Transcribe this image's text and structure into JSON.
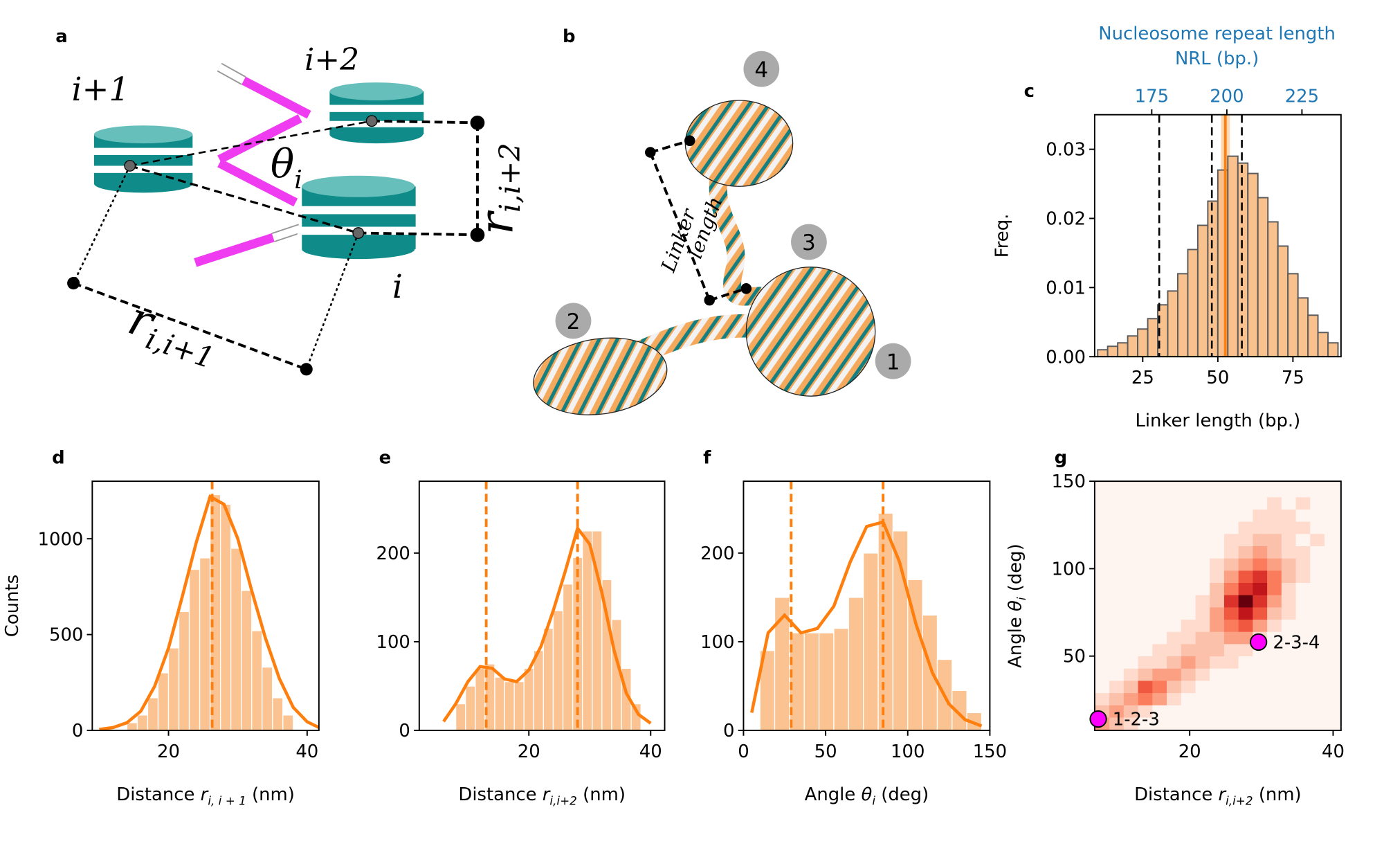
{
  "diagram_a": {
    "panel": "a",
    "nucleosomes": [
      "i+1",
      "i+2",
      "i"
    ],
    "angle": {
      "symbol": "θ",
      "sub": "i"
    },
    "r_i2": {
      "symbol": "r",
      "sub": "i,i+2"
    },
    "r_i1": {
      "symbol": "r",
      "sub": "i,i+1"
    }
  },
  "diagram_b": {
    "panel": "b",
    "linker": [
      "Linker",
      "length"
    ],
    "nucleosomes": [
      "1",
      "2",
      "3",
      "4"
    ]
  },
  "chart_data": [
    {
      "panel": "c",
      "type": "histogram",
      "xlabel": "Linker length (bp.)",
      "ylabel": "Freq.",
      "bins": [
        10,
        13.33,
        16.67,
        20,
        23.33,
        26.67,
        30,
        33.33,
        36.67,
        40,
        43.33,
        46.67,
        50,
        53.33,
        56.67,
        60,
        63.33,
        66.67,
        70,
        73.33,
        76.67,
        80,
        83.33,
        86.67,
        90
      ],
      "values": [
        0.001,
        0.0015,
        0.002,
        0.003,
        0.004,
        0.0055,
        0.0075,
        0.0095,
        0.012,
        0.0155,
        0.019,
        0.0225,
        0.027,
        0.029,
        0.028,
        0.0265,
        0.023,
        0.0195,
        0.016,
        0.012,
        0.0085,
        0.006,
        0.0035,
        0.002
      ],
      "color": "#f9be88",
      "edgecolor": "#5a5a5a",
      "xlim": [
        9,
        91
      ],
      "ylim": [
        0,
        0.035
      ],
      "xticks": [
        25,
        50,
        75
      ],
      "yticks": [
        {
          "value": 0,
          "label": "0.00"
        },
        {
          "value": 0.01,
          "label": "0.01"
        },
        {
          "value": 0.02,
          "label": "0.02"
        },
        {
          "value": 0.03,
          "label": "0.03"
        }
      ],
      "band": [
        51,
        54
      ],
      "band_color": "#fdd9b5",
      "vlines": [
        {
          "x": 30.5,
          "color": "#000000",
          "dashed": true
        },
        {
          "x": 48,
          "color": "#000000",
          "dashed": true
        },
        {
          "x": 58,
          "color": "#000000",
          "dashed": true
        },
        {
          "x": 52.5,
          "color": "#ff7f0e",
          "dashed": false
        }
      ],
      "top_axis": {
        "title": "Nucleosome repeat length",
        "label": "NRL (bp.)",
        "xlim": [
          156,
          238
        ],
        "xticks": [
          175,
          200,
          225
        ],
        "color": "#1f77b4"
      }
    },
    {
      "panel": "d",
      "type": "histogram",
      "xlabel": [
        "Distance ",
        "r",
        "i, i + 1",
        " (nm)"
      ],
      "ylabel": "Counts",
      "bins": [
        14,
        15.5,
        17,
        18.5,
        20,
        21.5,
        23,
        24.5,
        26,
        27.5,
        29,
        30.5,
        32,
        33.5,
        35,
        36.5,
        38
      ],
      "values": [
        40,
        80,
        170,
        300,
        430,
        620,
        840,
        900,
        1230,
        1180,
        950,
        730,
        520,
        330,
        170,
        80
      ],
      "color": "#fbc08c",
      "edgecolor": "#ffffff",
      "line_color": "#ff7f0e",
      "kde": {
        "x": [
          10,
          12,
          14,
          16,
          18,
          20,
          22,
          24,
          26,
          28,
          30,
          32,
          34,
          36,
          38,
          40,
          42
        ],
        "values": [
          5,
          15,
          40,
          100,
          230,
          430,
          700,
          980,
          1220,
          1180,
          1000,
          730,
          480,
          270,
          120,
          45,
          10
        ]
      },
      "vlines": [
        {
          "x": 26.3,
          "color": "#ff7f0e",
          "dashed": true
        }
      ],
      "xlim": [
        9,
        41.7
      ],
      "ylim": [
        0,
        1300
      ],
      "xticks": [
        20,
        40
      ],
      "yticks": [
        0,
        500,
        1000
      ]
    },
    {
      "panel": "e",
      "type": "histogram",
      "xlabel": [
        "Distance ",
        "r",
        "i,i+2",
        " (nm)"
      ],
      "bins": [
        8,
        9.6,
        11.2,
        12.8,
        14.4,
        16,
        17.6,
        19.2,
        20.8,
        22.4,
        24,
        25.6,
        27.2,
        28.8,
        30.4,
        32,
        33.6,
        35.2,
        36.8,
        38.4
      ],
      "values": [
        30,
        50,
        70,
        75,
        60,
        55,
        55,
        70,
        90,
        115,
        135,
        165,
        195,
        225,
        225,
        170,
        125,
        70,
        30
      ],
      "color": "#fbc08c",
      "edgecolor": "#ffffff",
      "line_color": "#ff7f0e",
      "kde": {
        "x": [
          6,
          8,
          10,
          12,
          14,
          16,
          18,
          20,
          22,
          24,
          26,
          28,
          30,
          32,
          34,
          36,
          38,
          40
        ],
        "values": [
          10,
          30,
          55,
          72,
          70,
          58,
          55,
          68,
          95,
          135,
          180,
          228,
          210,
          155,
          90,
          42,
          18,
          8
        ]
      },
      "vlines": [
        {
          "x": 13,
          "color": "#ff7f0e",
          "dashed": true
        },
        {
          "x": 28,
          "color": "#ff7f0e",
          "dashed": true
        }
      ],
      "xlim": [
        2,
        42.3
      ],
      "ylim": [
        0,
        281
      ],
      "xticks": [
        20,
        40
      ],
      "yticks": [
        0,
        100,
        200
      ]
    },
    {
      "panel": "f",
      "type": "histogram",
      "xlabel": [
        "Angle ",
        "θ",
        "i",
        " (deg)"
      ],
      "bins": [
        10,
        19,
        28,
        37,
        46,
        55,
        64,
        73,
        82,
        91,
        100,
        109,
        118,
        127,
        136,
        145
      ],
      "values": [
        90,
        150,
        110,
        110,
        110,
        115,
        150,
        200,
        245,
        225,
        170,
        130,
        80,
        45,
        20
      ],
      "color": "#fbc08c",
      "edgecolor": "#ffffff",
      "line_color": "#ff7f0e",
      "kde": {
        "x": [
          5,
          15,
          25,
          35,
          45,
          55,
          65,
          75,
          85,
          95,
          105,
          115,
          125,
          135,
          145
        ],
        "values": [
          20,
          110,
          130,
          110,
          115,
          140,
          190,
          230,
          235,
          190,
          120,
          65,
          30,
          12,
          5
        ]
      },
      "vlines": [
        {
          "x": 29,
          "color": "#ff7f0e",
          "dashed": true
        },
        {
          "x": 85,
          "color": "#ff7f0e",
          "dashed": true
        }
      ],
      "xlim": [
        0,
        150
      ],
      "ylim": [
        0,
        281
      ],
      "xticks": [
        0,
        50,
        100,
        150
      ],
      "yticks": [
        0,
        100,
        200
      ]
    },
    {
      "panel": "g",
      "type": "heatmap",
      "xlabel": [
        "Distance ",
        "r",
        "i,i+2",
        " (nm)"
      ],
      "ylabel": [
        "Angle ",
        "θ",
        "i",
        " (deg)"
      ],
      "xbins": [
        6.8,
        8.8,
        10.8,
        12.8,
        14.8,
        16.8,
        18.8,
        20.8,
        22.8,
        24.8,
        26.8,
        28.8,
        30.8,
        32.8,
        34.8,
        36.8,
        38.8,
        40.8
      ],
      "ybins": [
        8,
        15,
        22,
        29,
        36,
        43,
        50,
        57,
        64,
        71,
        78,
        85,
        92,
        99,
        106,
        113,
        120,
        127,
        134,
        141,
        148
      ],
      "z": [
        [
          3,
          2,
          1,
          0,
          0,
          0,
          0,
          0,
          0,
          0,
          0,
          0,
          0,
          0,
          0,
          0,
          0
        ],
        [
          2,
          3,
          2,
          1,
          0,
          0,
          0,
          0,
          0,
          0,
          0,
          0,
          0,
          0,
          0,
          0,
          0
        ],
        [
          1,
          2,
          3,
          4,
          3,
          1,
          0,
          0,
          0,
          0,
          0,
          0,
          0,
          0,
          0,
          0,
          0
        ],
        [
          0,
          1,
          2,
          5,
          4,
          2,
          1,
          0,
          0,
          0,
          0,
          0,
          0,
          0,
          0,
          0,
          0
        ],
        [
          0,
          0,
          1,
          2,
          3,
          3,
          2,
          1,
          0,
          0,
          0,
          0,
          0,
          0,
          0,
          0,
          0
        ],
        [
          0,
          0,
          0,
          1,
          1,
          2,
          3,
          2,
          1,
          1,
          0,
          0,
          0,
          0,
          0,
          0,
          0
        ],
        [
          0,
          0,
          0,
          0,
          1,
          1,
          2,
          2,
          2,
          1,
          1,
          0,
          0,
          0,
          0,
          0,
          0
        ],
        [
          0,
          0,
          0,
          0,
          0,
          1,
          1,
          2,
          2,
          3,
          3,
          1,
          0,
          0,
          0,
          0,
          0
        ],
        [
          0,
          0,
          0,
          0,
          0,
          0,
          1,
          1,
          3,
          4,
          5,
          3,
          1,
          0,
          0,
          0,
          0
        ],
        [
          0,
          0,
          0,
          0,
          0,
          0,
          0,
          1,
          3,
          5,
          7,
          5,
          2,
          1,
          0,
          0,
          0
        ],
        [
          0,
          0,
          0,
          0,
          0,
          0,
          0,
          1,
          2,
          6,
          9,
          6,
          3,
          1,
          0,
          0,
          0
        ],
        [
          0,
          0,
          0,
          0,
          0,
          0,
          0,
          0,
          2,
          4,
          6,
          7,
          4,
          1,
          0,
          0,
          0
        ],
        [
          0,
          0,
          0,
          0,
          0,
          0,
          0,
          0,
          1,
          3,
          5,
          6,
          4,
          2,
          1,
          0,
          0
        ],
        [
          0,
          0,
          0,
          0,
          0,
          0,
          0,
          0,
          1,
          2,
          3,
          4,
          3,
          2,
          1,
          0,
          0
        ],
        [
          0,
          0,
          0,
          0,
          0,
          0,
          0,
          0,
          0,
          1,
          2,
          3,
          2,
          1,
          1,
          0,
          0
        ],
        [
          0,
          0,
          0,
          0,
          0,
          0,
          0,
          0,
          0,
          1,
          1,
          2,
          2,
          1,
          0,
          1,
          0
        ],
        [
          0,
          0,
          0,
          0,
          0,
          0,
          0,
          0,
          0,
          0,
          1,
          1,
          1,
          1,
          1,
          0,
          0
        ],
        [
          0,
          0,
          0,
          0,
          0,
          0,
          0,
          0,
          0,
          0,
          0,
          1,
          1,
          1,
          0,
          0,
          0
        ],
        [
          0,
          0,
          0,
          0,
          0,
          0,
          0,
          0,
          0,
          0,
          0,
          0,
          1,
          0,
          1,
          0,
          0
        ],
        [
          0,
          0,
          0,
          0,
          0,
          0,
          0,
          0,
          0,
          0,
          0,
          0,
          0,
          0,
          0,
          0,
          0
        ]
      ],
      "points": [
        {
          "label": "1-2-3",
          "x": 7.25,
          "y": 14
        },
        {
          "label": "2-3-4",
          "x": 29.6,
          "y": 58
        }
      ],
      "point_color": "#ff00ff",
      "xlim": [
        6.75,
        41.1
      ],
      "ylim": [
        7.5,
        150
      ],
      "xticks": [
        20,
        40
      ],
      "yticks": [
        50,
        100,
        150
      ]
    }
  ]
}
